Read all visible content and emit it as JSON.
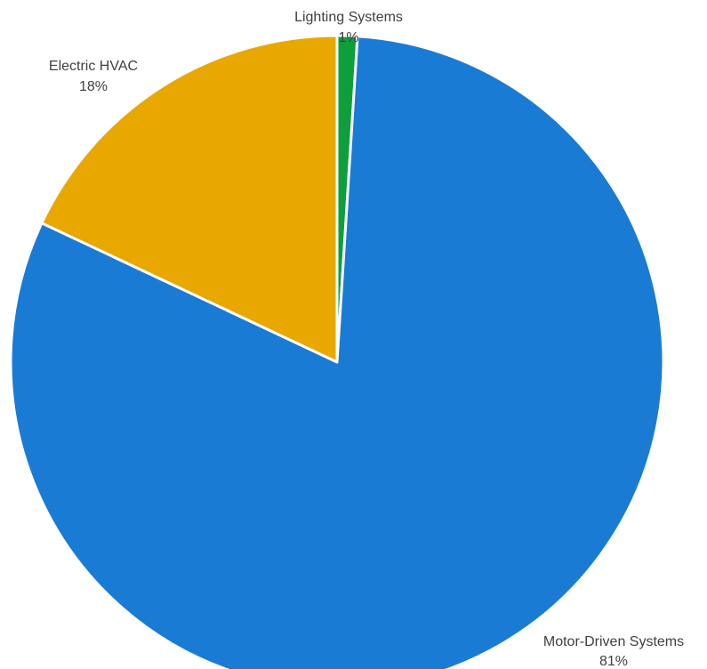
{
  "chart_data": {
    "type": "pie",
    "title": "",
    "slices": [
      {
        "label": "Motor-Driven Systems",
        "value": 81,
        "display": "81%",
        "color": "#1A7BD4"
      },
      {
        "label": "Electric HVAC",
        "value": 18,
        "display": "18%",
        "color": "#E8A800"
      },
      {
        "label": "Lighting Systems",
        "value": 1,
        "display": "1%",
        "color": "#0E9F3C"
      }
    ],
    "legend": "none",
    "data_labels": "outside, category name and percentage"
  }
}
